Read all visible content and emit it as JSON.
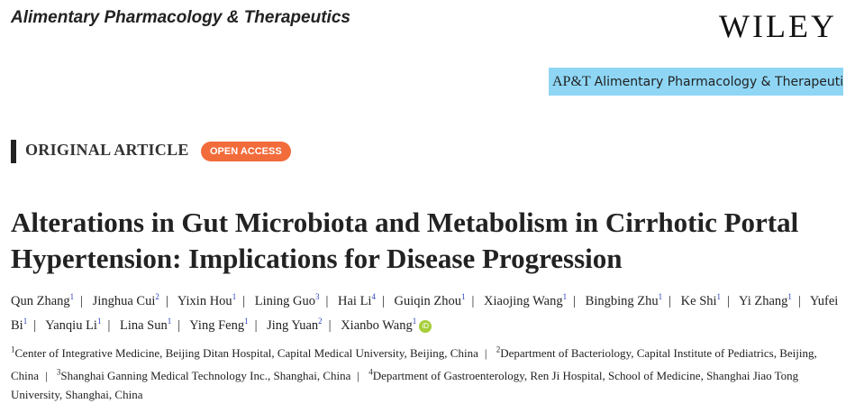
{
  "journal_title": "Alimentary Pharmacology & Therapeutics",
  "publisher_logo": "WILEY",
  "banner": {
    "abbr": "AP&T",
    "name": "Alimentary Pharmacology & Therapeutics",
    "color": "#8fd6f5"
  },
  "article_type": "ORIGINAL ARTICLE",
  "access_badge": {
    "label": "OPEN ACCESS",
    "color": "#f26b3a"
  },
  "title": "Alterations in Gut Microbiota and Metabolism in Cirrhotic Portal Hypertension: Implications for Disease Progression",
  "authors": [
    {
      "name": "Qun Zhang",
      "aff": "1"
    },
    {
      "name": "Jinghua Cui",
      "aff": "2"
    },
    {
      "name": "Yixin Hou",
      "aff": "1"
    },
    {
      "name": "Lining Guo",
      "aff": "3"
    },
    {
      "name": "Hai Li",
      "aff": "4"
    },
    {
      "name": "Guiqin Zhou",
      "aff": "1"
    },
    {
      "name": "Xiaojing Wang",
      "aff": "1"
    },
    {
      "name": "Bingbing Zhu",
      "aff": "1"
    },
    {
      "name": "Ke Shi",
      "aff": "1"
    },
    {
      "name": "Yi Zhang",
      "aff": "1"
    },
    {
      "name": "Yufei Bi",
      "aff": "1"
    },
    {
      "name": "Yanqiu Li",
      "aff": "1"
    },
    {
      "name": "Lina Sun",
      "aff": "1"
    },
    {
      "name": "Ying Feng",
      "aff": "1"
    },
    {
      "name": "Jing Yuan",
      "aff": "2"
    },
    {
      "name": "Xianbo Wang",
      "aff": "1"
    }
  ],
  "orcid_icon": "iD",
  "affiliations": [
    {
      "num": "1",
      "text": "Center of Integrative Medicine, Beijing Ditan Hospital, Capital Medical University, Beijing, China"
    },
    {
      "num": "2",
      "text": "Department of Bacteriology, Capital Institute of Pediatrics, Beijing, China"
    },
    {
      "num": "3",
      "text": "Shanghai Ganning Medical Technology Inc., Shanghai, China"
    },
    {
      "num": "4",
      "text": "Department of Gastroenterology, Ren Ji Hospital, School of Medicine, Shanghai Jiao Tong University, Shanghai, China"
    }
  ]
}
